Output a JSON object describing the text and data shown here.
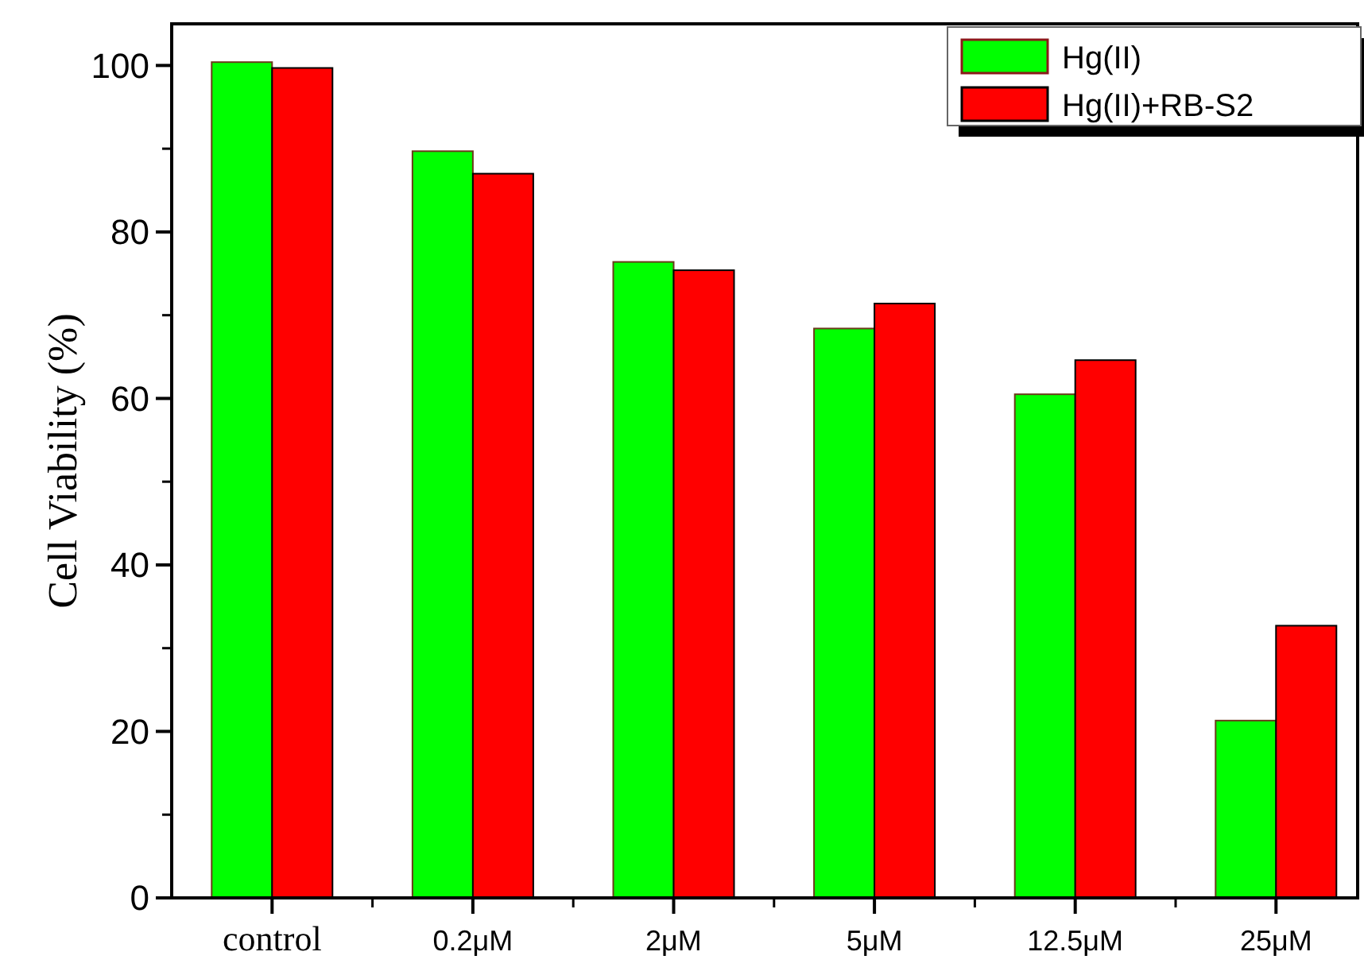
{
  "chart_data": {
    "type": "bar",
    "ylabel": "Cell Viability (%)",
    "categories": [
      "control",
      "0.2μM",
      "2μM",
      "5μM",
      "12.5μM",
      "25μM"
    ],
    "series": [
      {
        "name": "Hg(II)",
        "color": "#00ff00",
        "values": [
          100.4,
          89.7,
          76.4,
          68.4,
          60.5,
          21.3
        ]
      },
      {
        "name": "Hg(II)+RB-S2",
        "color": "#ff0000",
        "values": [
          99.7,
          87.0,
          75.4,
          71.4,
          64.6,
          32.7
        ]
      }
    ],
    "ylim": [
      0,
      105
    ],
    "yticks": [
      0,
      20,
      40,
      60,
      80,
      100
    ],
    "grid": false,
    "legend": "top right"
  }
}
